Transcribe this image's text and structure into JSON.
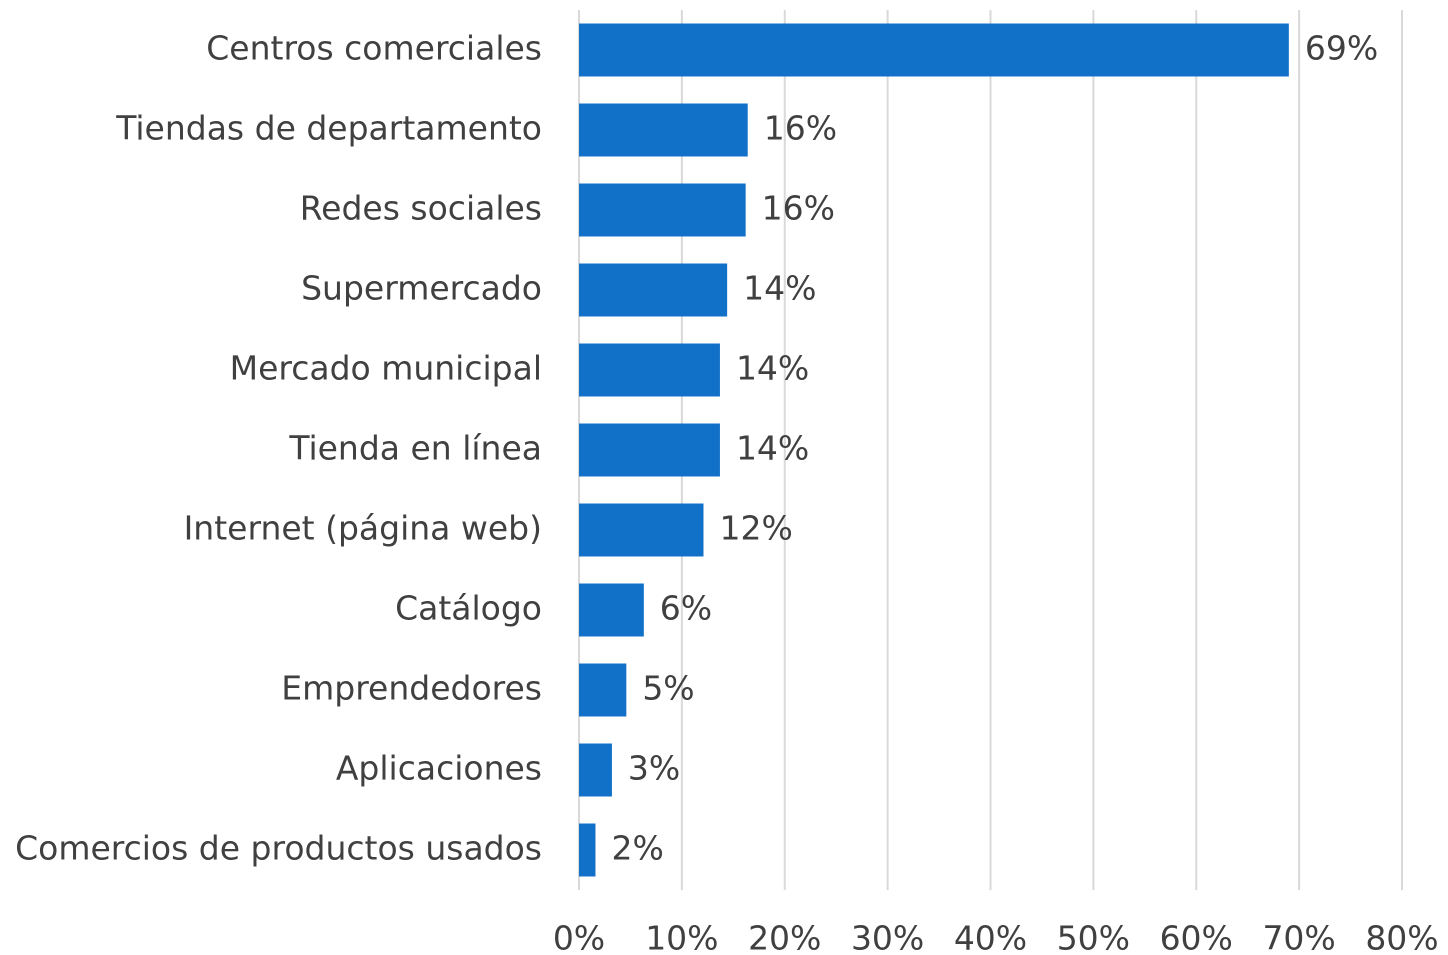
{
  "chart_data": {
    "type": "bar",
    "orientation": "horizontal",
    "categories": [
      "Centros comerciales",
      "Tiendas de departamento",
      "Redes sociales",
      "Supermercado",
      "Mercado municipal",
      "Tienda en línea",
      "Internet (página web)",
      "Catálogo",
      "Emprendedores",
      "Aplicaciones",
      "Comercios de productos usados"
    ],
    "values": [
      69,
      16.4,
      16.2,
      14.4,
      13.7,
      13.7,
      12.1,
      6.3,
      4.6,
      3.2,
      1.6
    ],
    "value_labels": [
      "69%",
      "16%",
      "16%",
      "14%",
      "14%",
      "14%",
      "12%",
      "6%",
      "5%",
      "3%",
      "2%"
    ],
    "color": "#1170c8",
    "xlim": [
      0,
      80
    ],
    "xticks": [
      {
        "value": 0,
        "label": "0%"
      },
      {
        "value": 10,
        "label": "10%"
      },
      {
        "value": 20,
        "label": "20%"
      },
      {
        "value": 30,
        "label": "30%"
      },
      {
        "value": 40,
        "label": "40%"
      },
      {
        "value": 50,
        "label": "50%"
      },
      {
        "value": 60,
        "label": "60%"
      },
      {
        "value": 70,
        "label": "70%"
      },
      {
        "value": 80,
        "label": "80%"
      }
    ],
    "grid": true
  }
}
